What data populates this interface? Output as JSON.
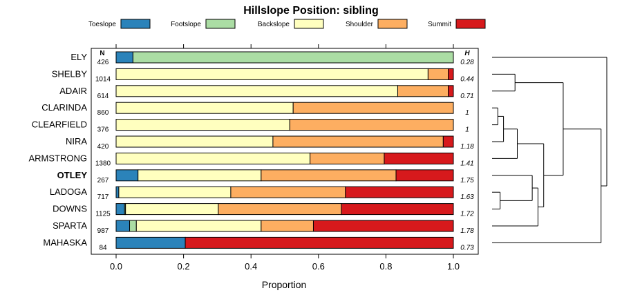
{
  "chart_data": {
    "type": "bar",
    "orientation": "horizontal-stacked",
    "title": "Hillslope Position: sibling",
    "xlabel": "Proportion",
    "ylabel": "",
    "xlim": [
      0,
      1
    ],
    "x_ticks": [
      "0.0",
      "0.2",
      "0.4",
      "0.6",
      "0.8",
      "1.0"
    ],
    "x_tick_values": [
      0,
      0.2,
      0.4,
      0.6,
      0.8,
      1.0
    ],
    "legend": {
      "placement": "top",
      "entries": [
        {
          "name": "Toeslope",
          "color": "#2b83ba"
        },
        {
          "name": "Footslope",
          "color": "#abdda4"
        },
        {
          "name": "Backslope",
          "color": "#ffffbf"
        },
        {
          "name": "Shoulder",
          "color": "#fdae61"
        },
        {
          "name": "Summit",
          "color": "#d7191c"
        }
      ]
    },
    "n_header": "N",
    "h_header": "H",
    "rows": [
      {
        "label": "ELY",
        "bold": false,
        "n": "426",
        "h": "0.28",
        "values": [
          0.05,
          0.95,
          0,
          0,
          0
        ]
      },
      {
        "label": "SHELBY",
        "bold": false,
        "n": "1014",
        "h": "0.44",
        "values": [
          0,
          0,
          0.925,
          0.06,
          0.015
        ]
      },
      {
        "label": "ADAIR",
        "bold": false,
        "n": "614",
        "h": "0.71",
        "values": [
          0,
          0,
          0.835,
          0.15,
          0.015
        ]
      },
      {
        "label": "CLARINDA",
        "bold": false,
        "n": "860",
        "h": "1",
        "values": [
          0,
          0,
          0.525,
          0.475,
          0
        ]
      },
      {
        "label": "CLEARFIELD",
        "bold": false,
        "n": "376",
        "h": "1",
        "values": [
          0,
          0,
          0.515,
          0.485,
          0
        ]
      },
      {
        "label": "NIRA",
        "bold": false,
        "n": "420",
        "h": "1.18",
        "values": [
          0,
          0,
          0.465,
          0.505,
          0.03
        ]
      },
      {
        "label": "ARMSTRONG",
        "bold": false,
        "n": "1380",
        "h": "1.41",
        "values": [
          0,
          0,
          0.575,
          0.22,
          0.205
        ]
      },
      {
        "label": "OTLEY",
        "bold": true,
        "n": "267",
        "h": "1.75",
        "values": [
          0.065,
          0,
          0.365,
          0.4,
          0.17
        ]
      },
      {
        "label": "LADOGA",
        "bold": false,
        "n": "717",
        "h": "1.63",
        "values": [
          0.008,
          0,
          0.332,
          0.34,
          0.32
        ]
      },
      {
        "label": "DOWNS",
        "bold": false,
        "n": "1125",
        "h": "1.72",
        "values": [
          0.025,
          0.003,
          0.275,
          0.365,
          0.332
        ]
      },
      {
        "label": "SPARTA",
        "bold": false,
        "n": "987",
        "h": "1.78",
        "values": [
          0.04,
          0.02,
          0.37,
          0.155,
          0.415
        ]
      },
      {
        "label": "MAHASKA",
        "bold": false,
        "n": "84",
        "h": "0.73",
        "values": [
          0.205,
          0,
          0,
          0,
          0.795
        ]
      }
    ],
    "dendrogram": {
      "leaf_order": [
        "ELY",
        "SHELBY",
        "ADAIR",
        "CLARINDA",
        "CLEARFIELD",
        "NIRA",
        "ARMSTRONG",
        "OTLEY",
        "LADOGA",
        "DOWNS",
        "SPARTA",
        "MAHASKA"
      ],
      "merges": [
        {
          "a": "L3",
          "b": "L4",
          "height": 0.05
        },
        {
          "a": "L8",
          "b": "L9",
          "height": 0.07
        },
        {
          "a": "C0",
          "b": "L5",
          "height": 0.1
        },
        {
          "a": "L1",
          "b": "L2",
          "height": 0.2
        },
        {
          "a": "C2",
          "b": "L6",
          "height": 0.22
        },
        {
          "a": "L7",
          "b": "C1",
          "height": 0.35
        },
        {
          "a": "C5",
          "b": "L10",
          "height": 0.4
        },
        {
          "a": "C6",
          "b": "C4",
          "height": 0.45
        },
        {
          "a": "C3",
          "b": "C7",
          "height": 0.62
        },
        {
          "a": "C8",
          "b": "L11",
          "height": 0.95
        },
        {
          "a": "L0",
          "b": "C9",
          "height": 1.0
        }
      ]
    }
  }
}
